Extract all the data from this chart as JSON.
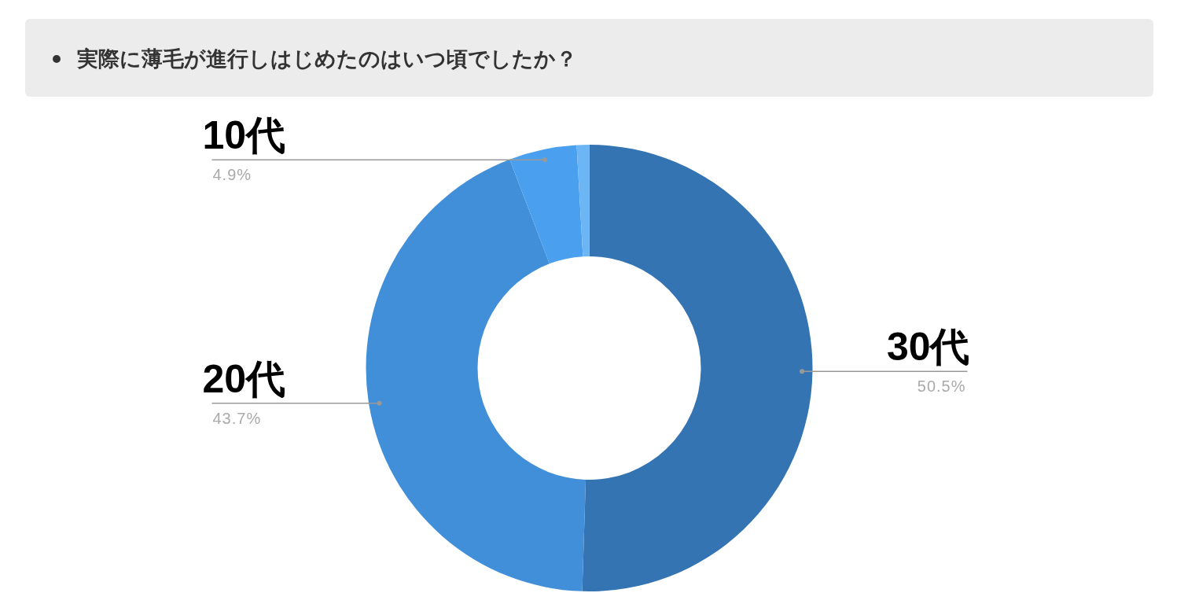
{
  "chart_data": {
    "type": "donut",
    "title": "実際に薄毛が進行しはじめたのはいつ頃でしたか？",
    "categories": [
      "30代",
      "20代",
      "10代",
      null
    ],
    "values": [
      50.5,
      43.7,
      4.9,
      0.9
    ],
    "colors": [
      "#3574b3",
      "#418fd8",
      "#4aa0ee",
      "#6cb6f5"
    ],
    "value_labels": [
      "50.5%",
      "43.7%",
      "4.9%",
      null
    ]
  }
}
